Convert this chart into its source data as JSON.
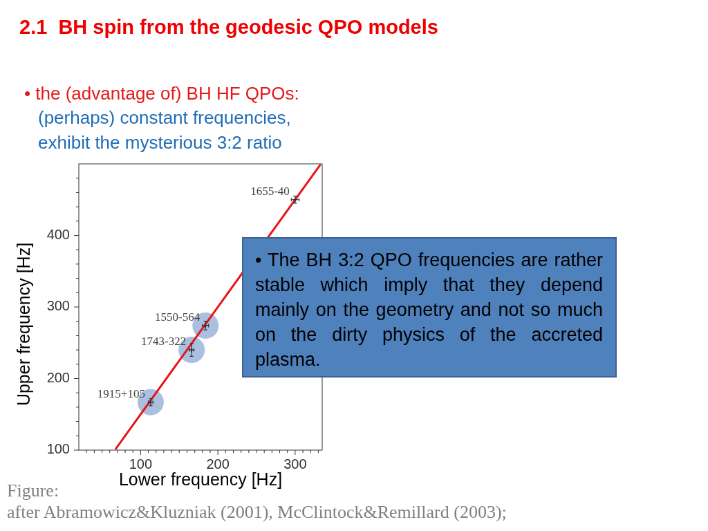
{
  "chart_data": {
    "type": "scatter",
    "title": "2.1  BH spin from the geodesic QPO models",
    "subtitle": "• the (advantage of) BH HF QPOs:",
    "xlabel": "Lower frequency [Hz]",
    "ylabel": "Upper frequency [Hz]",
    "xlim": [
      20,
      335
    ],
    "ylim": [
      100,
      500
    ],
    "xticks": [
      {
        "value": 30,
        "label": null
      },
      {
        "value": 40,
        "label": null
      },
      {
        "value": 50,
        "label": null
      },
      {
        "value": 60,
        "label": null
      },
      {
        "value": 70,
        "label": null
      },
      {
        "value": 80,
        "label": null
      },
      {
        "value": 90,
        "label": null
      },
      100,
      {
        "value": 110,
        "label": null
      },
      {
        "value": 120,
        "label": null
      },
      {
        "value": 130,
        "label": null
      },
      {
        "value": 140,
        "label": null
      },
      {
        "value": 150,
        "label": null
      },
      {
        "value": 160,
        "label": null
      },
      {
        "value": 170,
        "label": null
      },
      {
        "value": 180,
        "label": null
      },
      {
        "value": 190,
        "label": null
      },
      200,
      {
        "value": 210,
        "label": null
      },
      {
        "value": 220,
        "label": null
      },
      {
        "value": 230,
        "label": null
      },
      {
        "value": 240,
        "label": null
      },
      {
        "value": 250,
        "label": null
      },
      {
        "value": 260,
        "label": null
      },
      {
        "value": 270,
        "label": null
      },
      {
        "value": 280,
        "label": null
      },
      {
        "value": 290,
        "label": null
      },
      300,
      {
        "value": 310,
        "label": null
      },
      {
        "value": 320,
        "label": null
      },
      {
        "value": 330,
        "label": null
      }
    ],
    "yticks": [
      100,
      {
        "value": 120,
        "label": null
      },
      {
        "value": 140,
        "label": null
      },
      {
        "value": 160,
        "label": null
      },
      {
        "value": 180,
        "label": null
      },
      200,
      {
        "value": 220,
        "label": null
      },
      {
        "value": 240,
        "label": null
      },
      {
        "value": 260,
        "label": null
      },
      {
        "value": 280,
        "label": null
      },
      300,
      {
        "value": 320,
        "label": null
      },
      {
        "value": 340,
        "label": null
      },
      {
        "value": 360,
        "label": null
      },
      {
        "value": 380,
        "label": null
      },
      400,
      {
        "value": 420,
        "label": null
      },
      {
        "value": 440,
        "label": null
      },
      {
        "value": 460,
        "label": null
      },
      {
        "value": 480,
        "label": null
      }
    ],
    "series": [
      {
        "marker": "circle",
        "color": "#a9c0e0",
        "x": [
          113,
          166,
          184
        ],
        "values": [
          167,
          240,
          274
        ]
      },
      {
        "type": "line",
        "marker": "none",
        "color": "#e8141b",
        "x": [
          68,
          332
        ],
        "values": [
          102,
          498
        ]
      },
      {
        "marker": "cross",
        "color": "#333333",
        "x": [
          113,
          166,
          184,
          300
        ],
        "values": [
          167,
          240,
          274,
          450
        ],
        "errors": [
          5,
          9,
          6,
          5
        ],
        "xerrors": [
          3,
          3,
          4,
          5
        ]
      }
    ],
    "annotations": [
      "(perhaps) constant frequencies,",
      "exhibit the mysterious 3:2 ratio",
      "• The BH 3:2 QPO frequencies are rather stable which imply that they depend mainly on the geometry and not so much on the dirty physics of the accreted plasma.",
      "Figure:",
      "after Abramowicz&Kluzniak (2001), McClintock&Remillard (2003);",
      {
        "text": "1915+105",
        "x": 113,
        "y": 167
      },
      {
        "text": "1743-322",
        "x": 166,
        "y": 240
      },
      {
        "text": "1550-564",
        "x": 184,
        "y": 274
      },
      {
        "text": "1655-40",
        "x": 300,
        "y": 450
      }
    ]
  }
}
